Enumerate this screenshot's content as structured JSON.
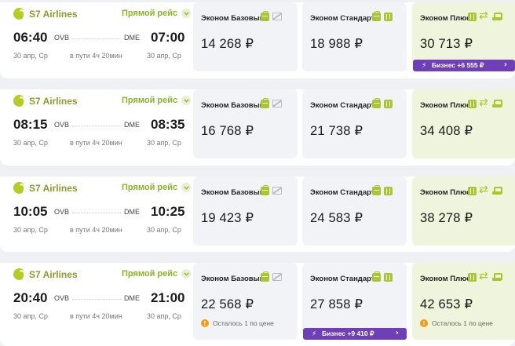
{
  "colors": {
    "accent_green": "#a8c630",
    "business_purple": "#6f3fb8",
    "warning_orange": "#f29a1b",
    "plus_bg": "#eef5dc"
  },
  "flights": [
    {
      "airline": "S7 Airlines",
      "direct_label": "Прямой рейс",
      "dep_time": "06:40",
      "arr_time": "07:00",
      "from": "OVB",
      "to": "DME",
      "dep_date": "30 апр, Ср",
      "arr_date": "30 апр, Ср",
      "duration": "в пути 4ч 20мин",
      "fares": [
        {
          "name": "Эконом Базовый",
          "icons": [
            "bag-icon",
            "no-change-icon"
          ],
          "price": "14 268 ₽",
          "upsell": null,
          "remaining": null
        },
        {
          "name": "Эконом Стандарт",
          "icons": [
            "bag-icon",
            "suitcase-icon"
          ],
          "price": "18 988 ₽",
          "upsell": null,
          "remaining": null
        },
        {
          "name": "Эконом Плюс",
          "icons": [
            "suitcase-icon",
            "exchange-icon",
            "seat-icon"
          ],
          "price": "30 713 ₽",
          "upsell": "Бизнес +6 555 ₽",
          "remaining": null
        }
      ]
    },
    {
      "airline": "S7 Airlines",
      "direct_label": "Прямой рейс",
      "dep_time": "08:15",
      "arr_time": "08:35",
      "from": "OVB",
      "to": "DME",
      "dep_date": "30 апр, Ср",
      "arr_date": "30 апр, Ср",
      "duration": "в пути 4ч 20мин",
      "fares": [
        {
          "name": "Эконом Базовый",
          "icons": [
            "bag-icon",
            "no-change-icon"
          ],
          "price": "16 768 ₽",
          "upsell": null,
          "remaining": null
        },
        {
          "name": "Эконом Стандарт",
          "icons": [
            "bag-icon",
            "suitcase-icon"
          ],
          "price": "21 738 ₽",
          "upsell": null,
          "remaining": null
        },
        {
          "name": "Эконом Плюс",
          "icons": [
            "suitcase-icon",
            "exchange-icon",
            "seat-icon"
          ],
          "price": "34 408 ₽",
          "upsell": null,
          "remaining": null
        }
      ]
    },
    {
      "airline": "S7 Airlines",
      "direct_label": "Прямой рейс",
      "dep_time": "10:05",
      "arr_time": "10:25",
      "from": "OVB",
      "to": "DME",
      "dep_date": "30 апр, Ср",
      "arr_date": "30 апр, Ср",
      "duration": "в пути 4ч 20мин",
      "fares": [
        {
          "name": "Эконом Базовый",
          "icons": [
            "bag-icon",
            "no-change-icon"
          ],
          "price": "19 423 ₽",
          "upsell": null,
          "remaining": null
        },
        {
          "name": "Эконом Стандарт",
          "icons": [
            "bag-icon",
            "suitcase-icon"
          ],
          "price": "24 583 ₽",
          "upsell": null,
          "remaining": null
        },
        {
          "name": "Эконом Плюс",
          "icons": [
            "suitcase-icon",
            "exchange-icon",
            "seat-icon"
          ],
          "price": "38 278 ₽",
          "upsell": null,
          "remaining": null
        }
      ]
    },
    {
      "airline": "S7 Airlines",
      "direct_label": "Прямой рейс",
      "dep_time": "20:40",
      "arr_time": "21:00",
      "from": "OVB",
      "to": "DME",
      "dep_date": "30 апр, Ср",
      "arr_date": "30 апр, Ср",
      "duration": "в пути 4ч 20мин",
      "fares": [
        {
          "name": "Эконом Базовый",
          "icons": [
            "bag-icon",
            "no-change-icon"
          ],
          "price": "22 568 ₽",
          "upsell": null,
          "remaining": "Осталось 1 по цене"
        },
        {
          "name": "Эконом Стандарт",
          "icons": [
            "bag-icon",
            "suitcase-icon"
          ],
          "price": "27 858 ₽",
          "upsell": "Бизнес +9 410 ₽",
          "remaining": null
        },
        {
          "name": "Эконом Плюс",
          "icons": [
            "suitcase-icon",
            "exchange-icon",
            "seat-icon"
          ],
          "price": "42 653 ₽",
          "upsell": null,
          "remaining": "Осталось 1 по цене"
        }
      ]
    }
  ]
}
